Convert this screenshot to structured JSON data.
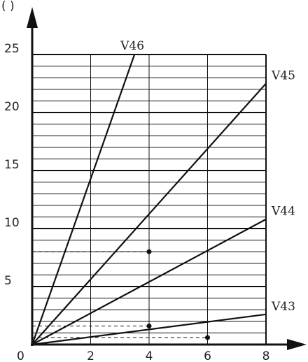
{
  "chart_data": {
    "type": "line",
    "title": "",
    "xlabel": "",
    "ylabel": "( )",
    "xlim": [
      0,
      8
    ],
    "ylim": [
      0,
      25
    ],
    "x_ticks": [
      0,
      2,
      4,
      6,
      8
    ],
    "y_ticks": [
      5,
      10,
      15,
      20,
      25
    ],
    "grid": true,
    "series": [
      {
        "name": "V46",
        "x": [
          0,
          3.5
        ],
        "y": [
          0,
          25
        ]
      },
      {
        "name": "V45",
        "x": [
          0,
          8
        ],
        "y": [
          0,
          22.5
        ]
      },
      {
        "name": "V44",
        "x": [
          0,
          8
        ],
        "y": [
          0,
          10.8
        ]
      },
      {
        "name": "V43",
        "x": [
          0,
          8
        ],
        "y": [
          0,
          2.6
        ]
      }
    ],
    "annotations": [
      {
        "x": 4,
        "y": 8
      },
      {
        "x": 4,
        "y": 1.6
      },
      {
        "x": 6,
        "y": 0.6
      }
    ]
  }
}
